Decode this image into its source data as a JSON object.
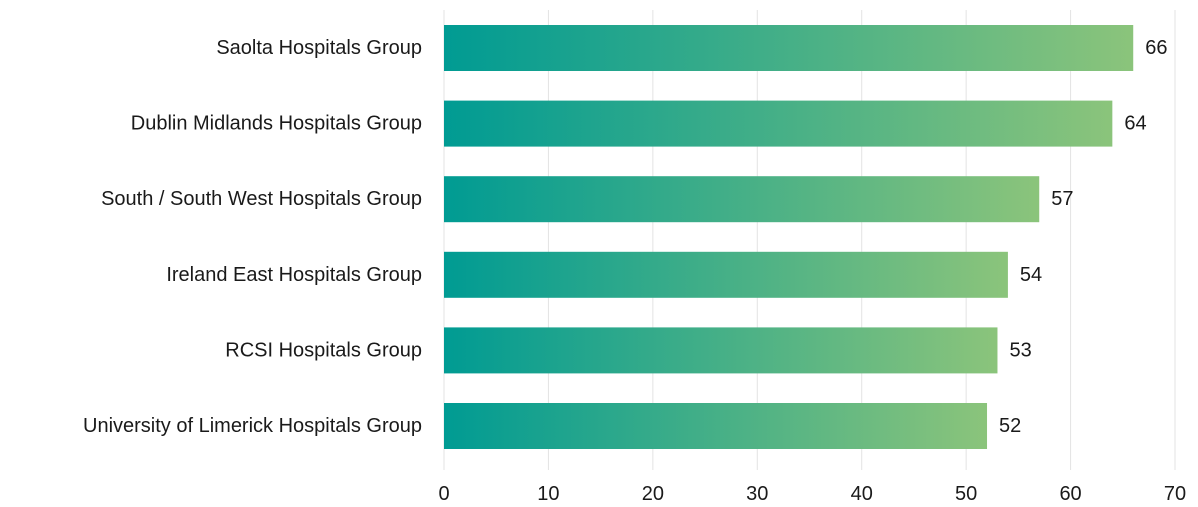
{
  "chart_data": {
    "type": "bar",
    "orientation": "horizontal",
    "categories": [
      "Saolta Hospitals Group",
      "Dublin Midlands Hospitals Group",
      "South / South West Hospitals Group",
      "Ireland East Hospitals Group",
      "RCSI Hospitals Group",
      "University of Limerick Hospitals Group"
    ],
    "values": [
      66,
      64,
      57,
      54,
      53,
      52
    ],
    "xlim": [
      0,
      70
    ],
    "x_ticks": [
      0,
      10,
      20,
      30,
      40,
      50,
      60,
      70
    ],
    "title": "",
    "xlabel": "",
    "ylabel": "",
    "grid": true,
    "legend": "none",
    "data_labels": true,
    "colors": {
      "bar_gradient_start": "#009B93",
      "bar_gradient_end": "#8BC47B",
      "grid": "#e3e3e3",
      "text": "#1a1a1a"
    }
  }
}
